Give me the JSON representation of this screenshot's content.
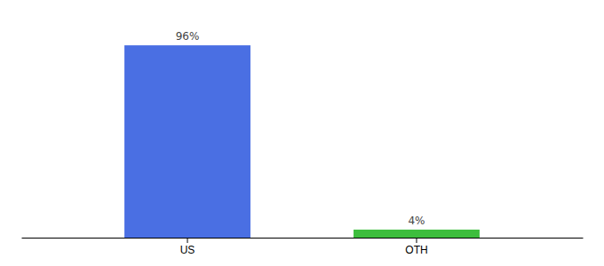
{
  "chart_data": {
    "type": "bar",
    "categories": [
      "US",
      "OTH"
    ],
    "values": [
      96,
      4
    ],
    "value_labels": [
      "96%",
      "4%"
    ],
    "colors": [
      "#4A6FE3",
      "#3DBE3D"
    ],
    "ylim": [
      0,
      108
    ],
    "data_labels": true,
    "tick_labels": "x",
    "grid": false
  }
}
